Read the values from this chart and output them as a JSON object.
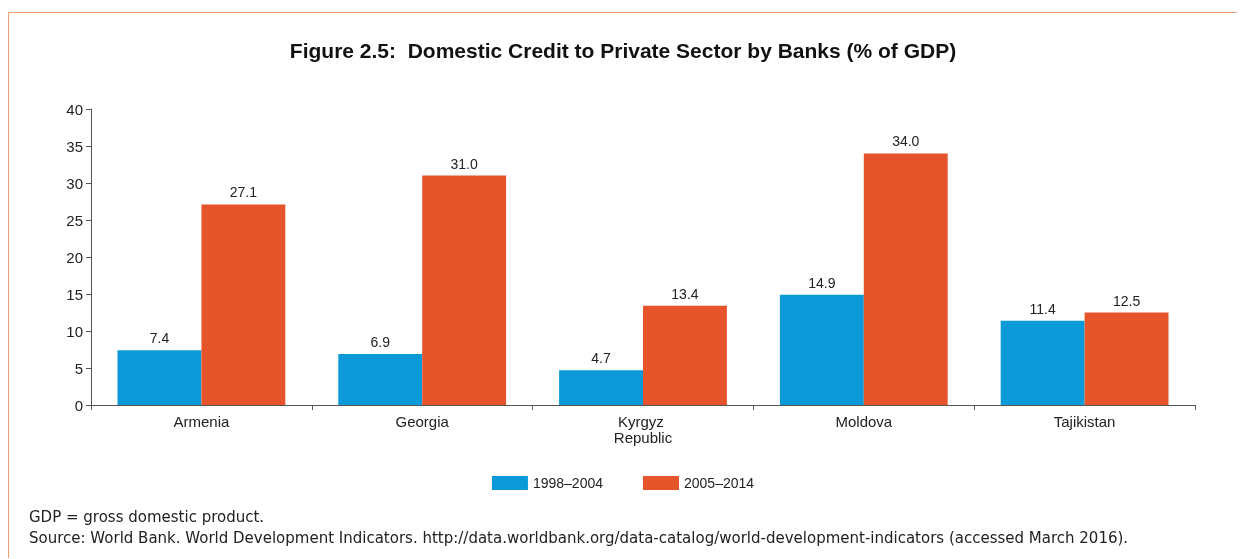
{
  "chart_data": {
    "type": "bar",
    "title": "Figure 2.5:  Domestic Credit to Private Sector by Banks (% of GDP)",
    "categories": [
      "Armenia",
      "Georgia",
      "Kyrgyz Republic",
      "Moldova",
      "Tajikistan"
    ],
    "series": [
      {
        "name": "1998–2004",
        "color": "#0b9ad7",
        "values": [
          7.4,
          6.9,
          4.7,
          14.9,
          11.4
        ],
        "value_labels": [
          "7.4",
          "6.9",
          "4.7",
          "14.9",
          "11.4"
        ]
      },
      {
        "name": "2005–2014",
        "color": "#e5542b",
        "values": [
          27.1,
          31,
          13.4,
          34,
          12.5
        ],
        "value_labels": [
          "27.1",
          "31.0",
          "13.4",
          "34.0",
          "12.5"
        ]
      }
    ],
    "ylim": [
      0,
      40
    ],
    "yticks": [
      0,
      5,
      10,
      15,
      20,
      25,
      30,
      35,
      40
    ],
    "grid": false,
    "legend": "bottom",
    "annotations": [
      "GDP = gross domestic product.",
      "Source: World Bank. World Development Indicators. http://data.worldbank.org/data-catalog/world-development-indicators (accessed March 2016)."
    ]
  }
}
